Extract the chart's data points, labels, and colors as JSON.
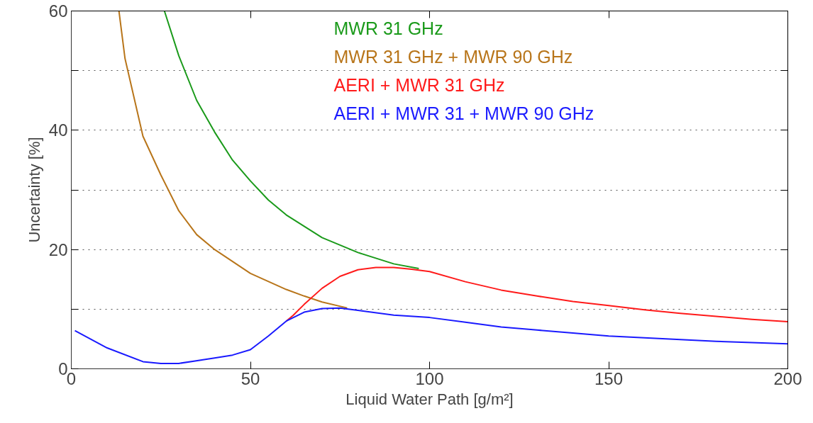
{
  "chart_data": {
    "type": "line",
    "xlabel": "Liquid Water Path [g/m²]",
    "ylabel": "Uncertainty [%]",
    "xlim": [
      0,
      200
    ],
    "ylim": [
      0,
      60
    ],
    "xticks": [
      0,
      50,
      100,
      150,
      200
    ],
    "yticks": [
      0,
      {
        "value": 10,
        "label": null
      },
      20,
      {
        "value": 30,
        "label": null
      },
      40,
      {
        "value": 50,
        "label": null
      },
      60
    ],
    "grid": "y",
    "legend": "top",
    "line_style": "solid",
    "marker": "none",
    "series": [
      {
        "name": "MWR 31 GHz",
        "color": "#1a9a1a",
        "x": [
          26,
          30,
          35,
          40,
          45,
          50,
          55,
          60,
          70,
          80,
          90,
          97
        ],
        "values": [
          60,
          52.5,
          45,
          39.7,
          35,
          31.5,
          28.3,
          25.8,
          22,
          19.5,
          17.6,
          16.8
        ]
      },
      {
        "name": "MWR 31 GHz + MWR 90 GHz",
        "color": "#b8751a",
        "x": [
          13.3,
          15,
          20,
          25,
          30,
          35,
          40,
          50,
          60,
          65,
          70,
          77
        ],
        "values": [
          60,
          52,
          39,
          32.5,
          26.5,
          22.5,
          20,
          16,
          13.3,
          12.2,
          11.2,
          10.2
        ]
      },
      {
        "name": "AERI + MWR 31 GHz",
        "color": "#ff1a1a",
        "x": [
          60,
          62,
          65,
          70,
          75,
          80,
          85,
          90,
          95,
          100,
          110,
          120,
          130,
          140,
          150,
          160,
          170,
          180,
          190,
          200
        ],
        "values": [
          8,
          9,
          10.8,
          13.5,
          15.5,
          16.6,
          17,
          17,
          16.7,
          16.3,
          14.6,
          13.2,
          12.2,
          11.3,
          10.6,
          9.9,
          9.3,
          8.8,
          8.3,
          7.9
        ]
      },
      {
        "name": "AERI + MWR 31 + MWR 90 GHz",
        "color": "#1a1aff",
        "x": [
          1,
          10,
          20,
          25,
          30,
          40,
          45,
          50,
          55,
          60,
          65,
          70,
          75,
          80,
          90,
          100,
          110,
          120,
          130,
          140,
          150,
          160,
          170,
          180,
          190,
          200
        ],
        "values": [
          6.4,
          3.5,
          1.2,
          0.9,
          0.9,
          1.8,
          2.3,
          3.2,
          5.5,
          8,
          9.5,
          10.1,
          10.2,
          9.8,
          9,
          8.6,
          7.8,
          7,
          6.5,
          6,
          5.5,
          5.2,
          4.9,
          4.6,
          4.4,
          4.2
        ]
      }
    ]
  }
}
